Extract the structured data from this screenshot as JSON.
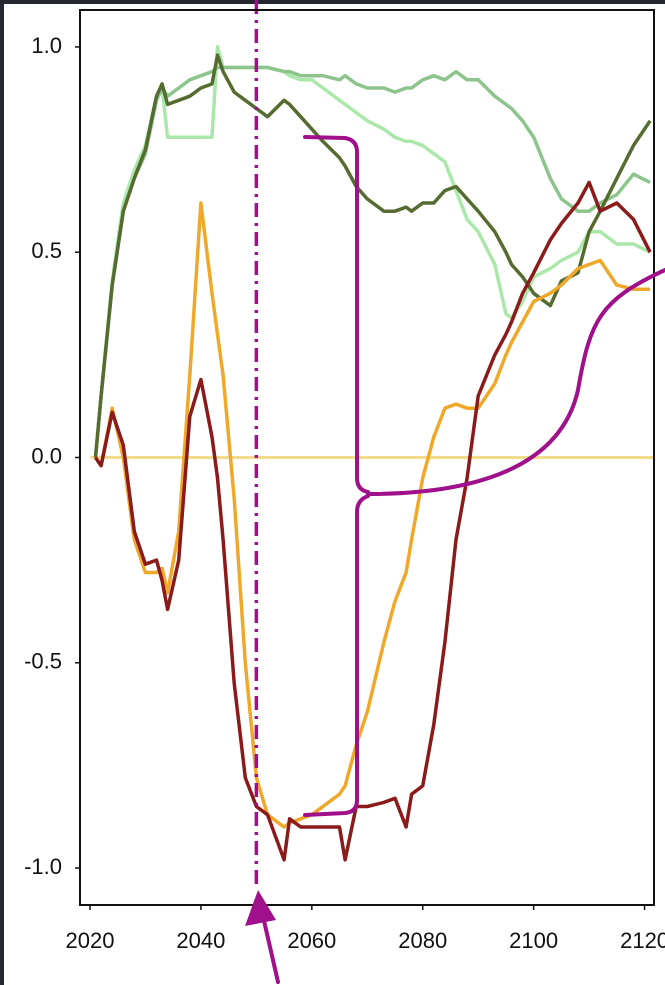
{
  "chart_data": {
    "type": "line",
    "x": [
      2021,
      2022,
      2024,
      2026,
      2028,
      2030,
      2032,
      2033,
      2034,
      2036,
      2038,
      2040,
      2042,
      2043,
      2044,
      2046,
      2048,
      2050,
      2052,
      2055,
      2056,
      2058,
      2060,
      2062,
      2065,
      2066,
      2068,
      2070,
      2073,
      2075,
      2077,
      2078,
      2080,
      2082,
      2084,
      2086,
      2088,
      2090,
      2093,
      2095,
      2096,
      2098,
      2100,
      2103,
      2105,
      2108,
      2110,
      2112,
      2115,
      2118,
      2121
    ],
    "series": [
      {
        "color": "#a9e8a9",
        "values": [
          0,
          0.15,
          0.43,
          0.62,
          0.7,
          0.76,
          0.88,
          0.9,
          0.78,
          0.78,
          0.78,
          0.78,
          0.78,
          1.0,
          0.95,
          0.95,
          0.95,
          0.95,
          0.95,
          0.94,
          0.93,
          0.92,
          0.92,
          0.9,
          0.87,
          0.86,
          0.84,
          0.82,
          0.8,
          0.78,
          0.77,
          0.77,
          0.76,
          0.74,
          0.72,
          0.65,
          0.58,
          0.55,
          0.47,
          0.35,
          0.34,
          0.38,
          0.44,
          0.46,
          0.48,
          0.5,
          0.55,
          0.55,
          0.52,
          0.52,
          0.5
        ]
      },
      {
        "color": "#8cc48c",
        "values": [
          0,
          0.15,
          0.42,
          0.6,
          0.68,
          0.74,
          0.87,
          0.9,
          0.88,
          0.9,
          0.92,
          0.93,
          0.94,
          0.95,
          0.95,
          0.95,
          0.95,
          0.95,
          0.95,
          0.94,
          0.94,
          0.93,
          0.93,
          0.93,
          0.92,
          0.93,
          0.91,
          0.9,
          0.9,
          0.89,
          0.9,
          0.9,
          0.92,
          0.93,
          0.92,
          0.94,
          0.92,
          0.92,
          0.88,
          0.86,
          0.85,
          0.82,
          0.78,
          0.68,
          0.63,
          0.6,
          0.6,
          0.62,
          0.64,
          0.69,
          0.67
        ]
      },
      {
        "color": "#556b2f",
        "values": [
          0,
          0.15,
          0.42,
          0.6,
          0.68,
          0.75,
          0.88,
          0.91,
          0.86,
          0.87,
          0.88,
          0.9,
          0.91,
          0.98,
          0.94,
          0.89,
          0.87,
          0.85,
          0.83,
          0.87,
          0.86,
          0.83,
          0.8,
          0.77,
          0.73,
          0.71,
          0.66,
          0.63,
          0.6,
          0.6,
          0.61,
          0.6,
          0.62,
          0.62,
          0.65,
          0.66,
          0.63,
          0.6,
          0.55,
          0.5,
          0.47,
          0.44,
          0.4,
          0.37,
          0.43,
          0.45,
          0.55,
          0.6,
          0.68,
          0.76,
          0.82
        ]
      },
      {
        "color": "#f0a82a",
        "values": [
          0,
          -0.02,
          0.12,
          0.0,
          -0.2,
          -0.28,
          -0.28,
          -0.27,
          -0.33,
          -0.18,
          0.2,
          0.62,
          0.4,
          0.3,
          0.2,
          -0.1,
          -0.5,
          -0.78,
          -0.87,
          -0.9,
          -0.89,
          -0.88,
          -0.87,
          -0.85,
          -0.82,
          -0.8,
          -0.7,
          -0.62,
          -0.45,
          -0.35,
          -0.28,
          -0.2,
          -0.05,
          0.05,
          0.12,
          0.13,
          0.12,
          0.12,
          0.18,
          0.25,
          0.28,
          0.33,
          0.38,
          0.4,
          0.42,
          0.46,
          0.47,
          0.48,
          0.42,
          0.41,
          0.41
        ]
      },
      {
        "color": "#8b1a1a",
        "values": [
          0,
          -0.02,
          0.11,
          0.03,
          -0.18,
          -0.26,
          -0.25,
          -0.3,
          -0.37,
          -0.25,
          0.1,
          0.19,
          0.05,
          -0.05,
          -0.2,
          -0.55,
          -0.78,
          -0.85,
          -0.87,
          -0.98,
          -0.88,
          -0.9,
          -0.9,
          -0.9,
          -0.9,
          -0.98,
          -0.85,
          -0.85,
          -0.84,
          -0.83,
          -0.9,
          -0.82,
          -0.8,
          -0.65,
          -0.45,
          -0.2,
          -0.05,
          0.15,
          0.25,
          0.3,
          0.33,
          0.4,
          0.45,
          0.53,
          0.57,
          0.62,
          0.67,
          0.6,
          0.62,
          0.58,
          0.5
        ]
      }
    ],
    "hline": {
      "value": 0,
      "color": "#f2dc8c"
    },
    "vline": {
      "value": 2050,
      "color": "#a0108a"
    },
    "xlim": [
      2018.2,
      2121.7
    ],
    "ylim": [
      -1.09,
      1.09
    ],
    "xticks": [
      2020,
      2040,
      2060,
      2080,
      2100,
      2120
    ],
    "yticks": [
      {
        "value": 1,
        "label": "1.0"
      },
      {
        "value": 0.5,
        "label": "0.5"
      },
      {
        "value": 0,
        "label": "0.0"
      },
      {
        "value": -0.5,
        "label": "-0.5"
      },
      {
        "value": -1,
        "label": "-1.0"
      }
    ]
  }
}
